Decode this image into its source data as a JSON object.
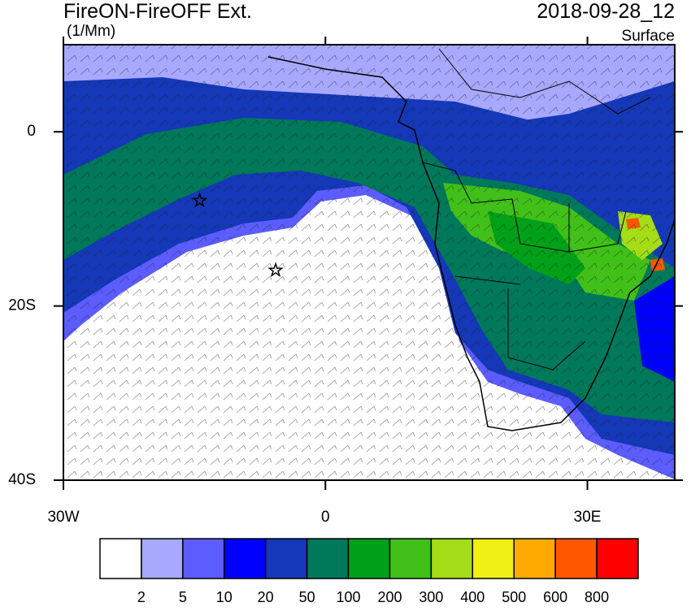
{
  "chart_data": {
    "type": "map",
    "title": "FireON-FireOFF Ext.",
    "units": "(1/Mm)",
    "date": "2018-09-28_12",
    "level": "Surface",
    "xlim": [
      -30,
      40
    ],
    "ylim": [
      -40,
      10
    ],
    "xticks": [
      {
        "value": -30,
        "label": "30W"
      },
      0,
      {
        "value": 30,
        "label": "30E"
      }
    ],
    "yticks": [
      {
        "value": -40,
        "label": "40S"
      },
      {
        "value": -20,
        "label": "20S"
      },
      0
    ],
    "markers": {
      "x": [
        -14.4,
        -5.7
      ],
      "y": [
        -7.9,
        -15.9
      ]
    },
    "colorbar": {
      "levels": [
        2,
        5,
        10,
        20,
        50,
        100,
        200,
        300,
        400,
        500,
        600,
        800
      ],
      "colors": [
        "#ffffff",
        "#a8a8ff",
        "#5c5cff",
        "#0000ff",
        "#1438b8",
        "#00785a",
        "#00a018",
        "#40c018",
        "#a4dc18",
        "#f0f014",
        "#ffaa00",
        "#ff5800",
        "#ff0000"
      ]
    }
  }
}
